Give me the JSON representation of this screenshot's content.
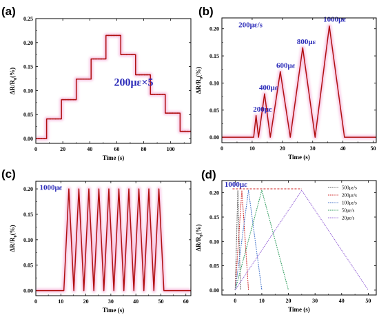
{
  "panels": [
    {
      "label": "(a)",
      "xlabel": "Time (s)",
      "ylabel": "ΔR/R₀(%)",
      "xlim": [
        0,
        115
      ],
      "ylim": [
        -0.01,
        0.25
      ],
      "xticks": [
        0,
        20,
        40,
        60,
        80,
        100
      ],
      "yticks": [
        0.0,
        0.05,
        0.1,
        0.15,
        0.2,
        0.25
      ],
      "annotations": [
        {
          "text": "200με×5",
          "x": 58,
          "y": 0.11,
          "size": 16
        }
      ],
      "line_color": "#b01010",
      "glow_color": "#f7bfe0",
      "type": "line",
      "levels": [
        {
          "t0": 0,
          "t1": 8,
          "v": 0.0
        },
        {
          "t0": 8,
          "t1": 19,
          "v": 0.041
        },
        {
          "t0": 19,
          "t1": 30,
          "v": 0.081
        },
        {
          "t0": 30,
          "t1": 41,
          "v": 0.124
        },
        {
          "t0": 41,
          "t1": 52,
          "v": 0.166
        },
        {
          "t0": 52,
          "t1": 63,
          "v": 0.215
        },
        {
          "t0": 63,
          "t1": 74,
          "v": 0.175
        },
        {
          "t0": 74,
          "t1": 85,
          "v": 0.133
        },
        {
          "t0": 85,
          "t1": 96,
          "v": 0.092
        },
        {
          "t0": 96,
          "t1": 107,
          "v": 0.053
        },
        {
          "t0": 107,
          "t1": 115,
          "v": 0.015
        }
      ]
    },
    {
      "label": "(b)",
      "xlabel": "Time (s)",
      "ylabel": "ΔR/R₀(%)",
      "xlim": [
        0,
        51
      ],
      "ylim": [
        -0.01,
        0.22
      ],
      "xticks": [
        0,
        10,
        20,
        30,
        40,
        50
      ],
      "yticks": [
        0.0,
        0.05,
        0.1,
        0.15,
        0.2
      ],
      "annotations": [
        {
          "text": "200με/s",
          "x": 5.5,
          "y": 0.203,
          "size": 11
        },
        {
          "text": "200με",
          "x": 10.3,
          "y": 0.047,
          "size": 11
        },
        {
          "text": "400με",
          "x": 12.3,
          "y": 0.087,
          "size": 11
        },
        {
          "text": "600με",
          "x": 18,
          "y": 0.128,
          "size": 11
        },
        {
          "text": "800με",
          "x": 24.8,
          "y": 0.172,
          "size": 11
        },
        {
          "text": "1000με",
          "x": 33.5,
          "y": 0.213,
          "size": 11
        }
      ],
      "line_color": "#b01010",
      "glow_color": "#f7bfe0",
      "type": "line",
      "x": [
        0,
        10.5,
        11.3,
        12.1,
        14.1,
        16.0,
        19.3,
        22.6,
        26.7,
        30.8,
        35.5,
        40.5,
        51
      ],
      "y": [
        0.0,
        0.0,
        0.04,
        0.0,
        0.08,
        0.0,
        0.121,
        0.0,
        0.165,
        0.0,
        0.205,
        0.0,
        0.0
      ]
    },
    {
      "label": "(c)",
      "xlabel": "Time (s)",
      "ylabel": "ΔR/R₀(%)",
      "xlim": [
        0,
        62
      ],
      "ylim": [
        -0.01,
        0.215
      ],
      "xticks": [
        0,
        10,
        20,
        30,
        40,
        50,
        60
      ],
      "yticks": [
        0.0,
        0.05,
        0.1,
        0.15,
        0.2
      ],
      "annotations": [
        {
          "text": "1000με",
          "x": 1.5,
          "y": 0.198,
          "size": 11
        }
      ],
      "line_color": "#b01010",
      "glow_color": "#f7bfe0",
      "type": "line",
      "x": [
        0,
        11.2,
        13.2,
        15.2,
        17.2,
        19.2,
        21.2,
        23.2,
        25.2,
        27.2,
        29.2,
        31.2,
        33.2,
        35.2,
        37.2,
        39.2,
        41.2,
        43.2,
        45.2,
        47.2,
        49.2,
        51.2,
        62
      ],
      "y": [
        0.0,
        0.0,
        0.2,
        0.0,
        0.2,
        0.0,
        0.2,
        0.0,
        0.2,
        0.0,
        0.2,
        0.0,
        0.2,
        0.0,
        0.2,
        0.0,
        0.2,
        0.0,
        0.2,
        0.0,
        0.2,
        0.0,
        0.0
      ]
    },
    {
      "label": "(d)",
      "xlabel": "Time (s)",
      "ylabel": "ΔR/R₀(%)",
      "xlim": [
        -5,
        53
      ],
      "ylim": [
        -0.01,
        0.225
      ],
      "xticks": [
        0,
        10,
        20,
        30,
        40,
        50
      ],
      "yticks": [
        0.0,
        0.05,
        0.1,
        0.15,
        0.2
      ],
      "annotations": [
        {
          "text": "1000με",
          "x": -4,
          "y": 0.212,
          "size": 11
        }
      ],
      "type": "line",
      "reference_line": {
        "y": 0.208,
        "x0": -1,
        "x1": 25,
        "color": "#cc2020"
      },
      "legend": {
        "position": "top-right"
      },
      "series": [
        {
          "name": "500με/s",
          "color": "#555555",
          "x": [
            0,
            1,
            2
          ],
          "y": [
            0.0,
            0.205,
            0.0
          ]
        },
        {
          "name": "200με/s",
          "color": "#cc2020",
          "x": [
            0,
            2.5,
            5
          ],
          "y": [
            0.0,
            0.205,
            0.0
          ]
        },
        {
          "name": "100με/s",
          "color": "#3c6ec8",
          "x": [
            0,
            5,
            10
          ],
          "y": [
            0.0,
            0.205,
            0.0
          ]
        },
        {
          "name": "50με/s",
          "color": "#2a9a5a",
          "x": [
            0,
            10,
            20
          ],
          "y": [
            0.0,
            0.205,
            0.0
          ]
        },
        {
          "name": "20με/s",
          "color": "#9a6ad8",
          "x": [
            0,
            25,
            50
          ],
          "y": [
            0.0,
            0.205,
            0.0
          ]
        }
      ]
    }
  ]
}
